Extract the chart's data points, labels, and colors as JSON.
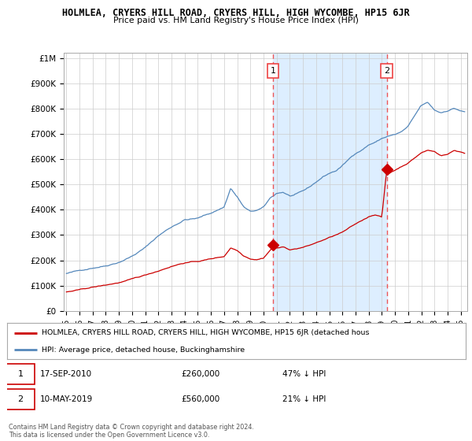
{
  "title": "HOLMLEA, CRYERS HILL ROAD, CRYERS HILL, HIGH WYCOMBE, HP15 6JR",
  "subtitle": "Price paid vs. HM Land Registry's House Price Index (HPI)",
  "ylabel_ticks": [
    "£0",
    "£100K",
    "£200K",
    "£300K",
    "£400K",
    "£500K",
    "£600K",
    "£700K",
    "£800K",
    "£900K",
    "£1M"
  ],
  "ytick_values": [
    0,
    100000,
    200000,
    300000,
    400000,
    500000,
    600000,
    700000,
    800000,
    900000,
    1000000
  ],
  "ylim": [
    0,
    1020000
  ],
  "xlim_start": 1995.0,
  "xlim_end": 2025.5,
  "hpi_color": "#5588bb",
  "price_color": "#cc0000",
  "dashed_line_color": "#ee4444",
  "fill_color": "#ddeeff",
  "background_color": "#ffffff",
  "grid_color": "#cccccc",
  "marker1_x": 2010.72,
  "marker1_y": 260000,
  "marker2_x": 2019.37,
  "marker2_y": 560000,
  "legend_line1": "HOLMLEA, CRYERS HILL ROAD, CRYERS HILL, HIGH WYCOMBE, HP15 6JR (detached hous",
  "legend_line2": "HPI: Average price, detached house, Buckinghamshire",
  "footer": "Contains HM Land Registry data © Crown copyright and database right 2024.\nThis data is licensed under the Open Government Licence v3.0."
}
